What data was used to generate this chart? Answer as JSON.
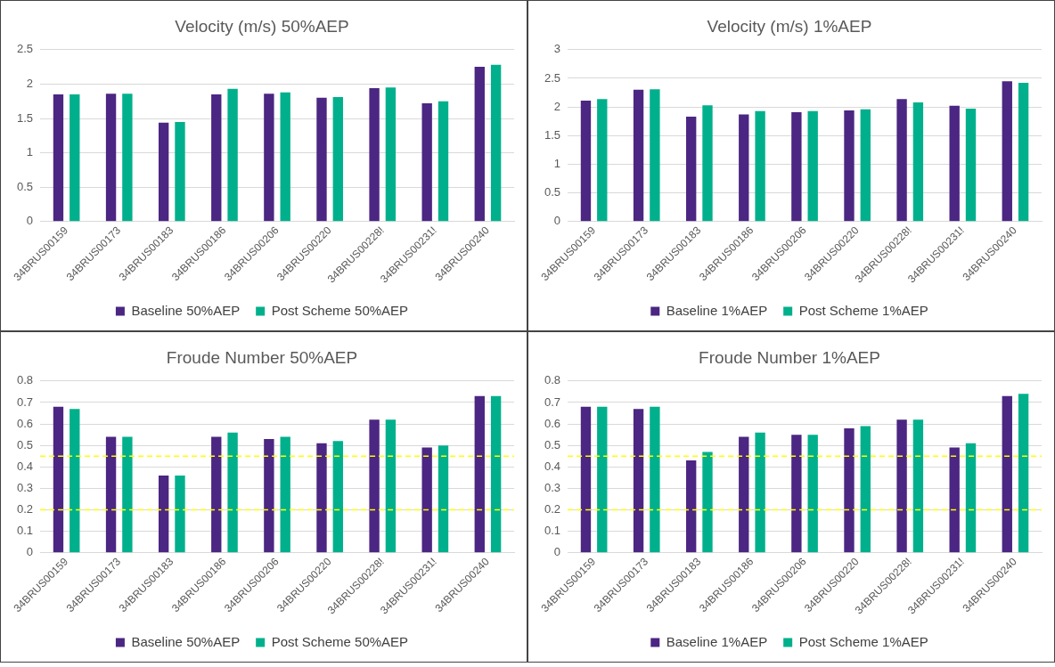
{
  "chart_data": [
    {
      "type": "bar",
      "title": "Velocity (m/s) 50%AEP",
      "categories": [
        "34BRUS00159",
        "34BRUS00173",
        "34BRUS00183",
        "34BRUS00186",
        "34BRUS00206",
        "34BRUS00220",
        "34BRUS00228!",
        "34BRUS00231!",
        "34BRUS00240"
      ],
      "series": [
        {
          "name": "Baseline 50%AEP",
          "color": "#4b2682",
          "values": [
            1.85,
            1.86,
            1.44,
            1.85,
            1.86,
            1.8,
            1.94,
            1.72,
            2.25
          ]
        },
        {
          "name": "Post Scheme 50%AEP",
          "color": "#00b08c",
          "values": [
            1.85,
            1.86,
            1.45,
            1.93,
            1.88,
            1.81,
            1.95,
            1.75,
            2.28
          ]
        }
      ],
      "ylim": [
        0,
        2.5
      ],
      "yticks": [
        0,
        0.5,
        1,
        1.5,
        2,
        2.5
      ],
      "grid": "y",
      "legend": "bottom"
    },
    {
      "type": "bar",
      "title": "Velocity (m/s) 1%AEP",
      "categories": [
        "34BRUS00159",
        "34BRUS00173",
        "34BRUS00183",
        "34BRUS00186",
        "34BRUS00206",
        "34BRUS00220",
        "34BRUS00228!",
        "34BRUS00231!",
        "34BRUS00240"
      ],
      "series": [
        {
          "name": "Baseline 1%AEP",
          "color": "#4b2682",
          "values": [
            2.11,
            2.3,
            1.83,
            1.87,
            1.91,
            1.94,
            2.14,
            2.02,
            2.45
          ]
        },
        {
          "name": "Post Scheme 1%AEP",
          "color": "#00b08c",
          "values": [
            2.14,
            2.31,
            2.03,
            1.93,
            1.93,
            1.96,
            2.08,
            1.97,
            2.42
          ]
        }
      ],
      "ylim": [
        0,
        3
      ],
      "yticks": [
        0,
        0.5,
        1,
        1.5,
        2,
        2.5,
        3
      ],
      "grid": "y",
      "legend": "bottom"
    },
    {
      "type": "bar",
      "title": "Froude Number 50%AEP",
      "categories": [
        "34BRUS00159",
        "34BRUS00173",
        "34BRUS00183",
        "34BRUS00186",
        "34BRUS00206",
        "34BRUS00220",
        "34BRUS00228!",
        "34BRUS00231!",
        "34BRUS00240"
      ],
      "series": [
        {
          "name": "Baseline 50%AEP",
          "color": "#4b2682",
          "values": [
            0.68,
            0.54,
            0.36,
            0.54,
            0.53,
            0.51,
            0.62,
            0.49,
            0.73
          ]
        },
        {
          "name": "Post Scheme 50%AEP",
          "color": "#00b08c",
          "values": [
            0.67,
            0.54,
            0.36,
            0.56,
            0.54,
            0.52,
            0.62,
            0.5,
            0.73
          ]
        }
      ],
      "ylim": [
        0,
        0.8
      ],
      "yticks": [
        0,
        0.1,
        0.2,
        0.3,
        0.4,
        0.5,
        0.6,
        0.7,
        0.8
      ],
      "grid": "y",
      "legend": "bottom",
      "ref_lines": [
        {
          "axis": "y",
          "value": 0.45,
          "color": "#ffff00",
          "line_style": "dashed"
        },
        {
          "axis": "y",
          "value": 0.2,
          "color": "#ffff00",
          "line_style": "dashed"
        }
      ]
    },
    {
      "type": "bar",
      "title": "Froude Number 1%AEP",
      "categories": [
        "34BRUS00159",
        "34BRUS00173",
        "34BRUS00183",
        "34BRUS00186",
        "34BRUS00206",
        "34BRUS00220",
        "34BRUS00228!",
        "34BRUS00231!",
        "34BRUS00240"
      ],
      "series": [
        {
          "name": "Baseline 1%AEP",
          "color": "#4b2682",
          "values": [
            0.68,
            0.67,
            0.43,
            0.54,
            0.55,
            0.58,
            0.62,
            0.49,
            0.73
          ]
        },
        {
          "name": "Post Scheme 1%AEP",
          "color": "#00b08c",
          "values": [
            0.68,
            0.68,
            0.47,
            0.56,
            0.55,
            0.59,
            0.62,
            0.51,
            0.74
          ]
        }
      ],
      "ylim": [
        0,
        0.8
      ],
      "yticks": [
        0,
        0.1,
        0.2,
        0.3,
        0.4,
        0.5,
        0.6,
        0.7,
        0.8
      ],
      "grid": "y",
      "legend": "bottom",
      "ref_lines": [
        {
          "axis": "y",
          "value": 0.45,
          "color": "#ffff00",
          "line_style": "dashed"
        },
        {
          "axis": "y",
          "value": 0.2,
          "color": "#ffff00",
          "line_style": "dashed"
        }
      ]
    }
  ]
}
